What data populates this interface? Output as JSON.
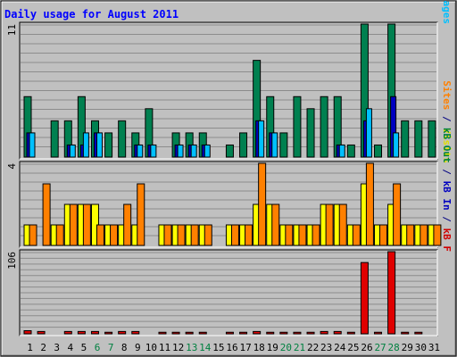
{
  "chart_data": {
    "type": "bar",
    "title": "Daily usage for August 2011",
    "categories": [
      "1",
      "2",
      "3",
      "4",
      "5",
      "6",
      "7",
      "8",
      "9",
      "10",
      "11",
      "12",
      "13",
      "14",
      "15",
      "16",
      "17",
      "18",
      "19",
      "20",
      "21",
      "22",
      "23",
      "24",
      "25",
      "26",
      "27",
      "28",
      "29",
      "30",
      "31"
    ],
    "weekend_days": [
      "6",
      "7",
      "13",
      "14",
      "20",
      "21",
      "27",
      "28"
    ],
    "panels": [
      {
        "id": "hits",
        "max_label": "11",
        "ylim": [
          0,
          11
        ],
        "side_labels": [
          {
            "text": "Pages",
            "color": "#00c0ff"
          },
          {
            "text": " / ",
            "color": "#000080"
          },
          {
            "text": "Files",
            "color": "#0000c0"
          },
          {
            "text": " / ",
            "color": "#000080"
          },
          {
            "text": "Hits",
            "color": "#008040"
          }
        ],
        "series": [
          {
            "name": "Hits",
            "color": "#008050",
            "values": [
              5,
              0,
              3,
              3,
              5,
              3,
              2,
              3,
              2,
              4,
              0,
              2,
              2,
              2,
              0,
              1,
              2,
              8,
              5,
              2,
              5,
              4,
              5,
              5,
              1,
              11,
              1,
              11,
              3,
              3,
              3
            ]
          },
          {
            "name": "Files",
            "color": "#0000c0",
            "values": [
              2,
              0,
              0,
              1,
              1,
              2,
              0,
              0,
              1,
              1,
              0,
              1,
              1,
              1,
              0,
              0,
              0,
              3,
              2,
              0,
              0,
              0,
              0,
              1,
              0,
              3,
              0,
              5,
              0,
              0,
              0
            ]
          },
          {
            "name": "Pages",
            "color": "#00c0ff",
            "values": [
              2,
              0,
              0,
              1,
              2,
              2,
              0,
              0,
              1,
              1,
              0,
              1,
              1,
              1,
              0,
              0,
              0,
              3,
              2,
              0,
              0,
              0,
              0,
              1,
              0,
              4,
              0,
              2,
              0,
              0,
              0
            ]
          }
        ]
      },
      {
        "id": "visits",
        "max_label": "4",
        "ylim": [
          0,
          4
        ],
        "side_labels": [
          {
            "text": "Visits",
            "color": "#e0e000"
          },
          {
            "text": " / ",
            "color": "#000080"
          },
          {
            "text": "Sites",
            "color": "#ff8000"
          }
        ],
        "series": [
          {
            "name": "Visits",
            "color": "#ffff00",
            "values": [
              1,
              0,
              1,
              2,
              2,
              2,
              1,
              1,
              1,
              0,
              1,
              1,
              1,
              1,
              0,
              1,
              1,
              2,
              2,
              1,
              1,
              1,
              2,
              2,
              1,
              3,
              1,
              2,
              1,
              1,
              1
            ]
          },
          {
            "name": "Sites",
            "color": "#ff8000",
            "values": [
              1,
              3,
              1,
              2,
              2,
              1,
              1,
              2,
              3,
              0,
              1,
              1,
              1,
              1,
              0,
              1,
              1,
              4,
              2,
              1,
              1,
              1,
              2,
              2,
              1,
              4,
              1,
              3,
              1,
              1,
              1
            ]
          }
        ]
      },
      {
        "id": "kbytes",
        "max_label": "106",
        "ylim": [
          0,
          106
        ],
        "side_labels": [
          {
            "text": "kB F",
            "color": "#d00000"
          },
          {
            "text": " / ",
            "color": "#000080"
          },
          {
            "text": "kB In",
            "color": "#0000c0"
          },
          {
            "text": " / ",
            "color": "#000080"
          },
          {
            "text": "kB Out",
            "color": "#008040"
          }
        ],
        "series": [
          {
            "name": "kB F",
            "color": "#e00000",
            "values": [
              4,
              3,
              0,
              3,
              3,
              3,
              2,
              3,
              3,
              0,
              2,
              2,
              2,
              2,
              0,
              2,
              2,
              3,
              2,
              2,
              2,
              2,
              3,
              3,
              2,
              92,
              2,
              106,
              2,
              2,
              0
            ]
          }
        ]
      }
    ]
  }
}
